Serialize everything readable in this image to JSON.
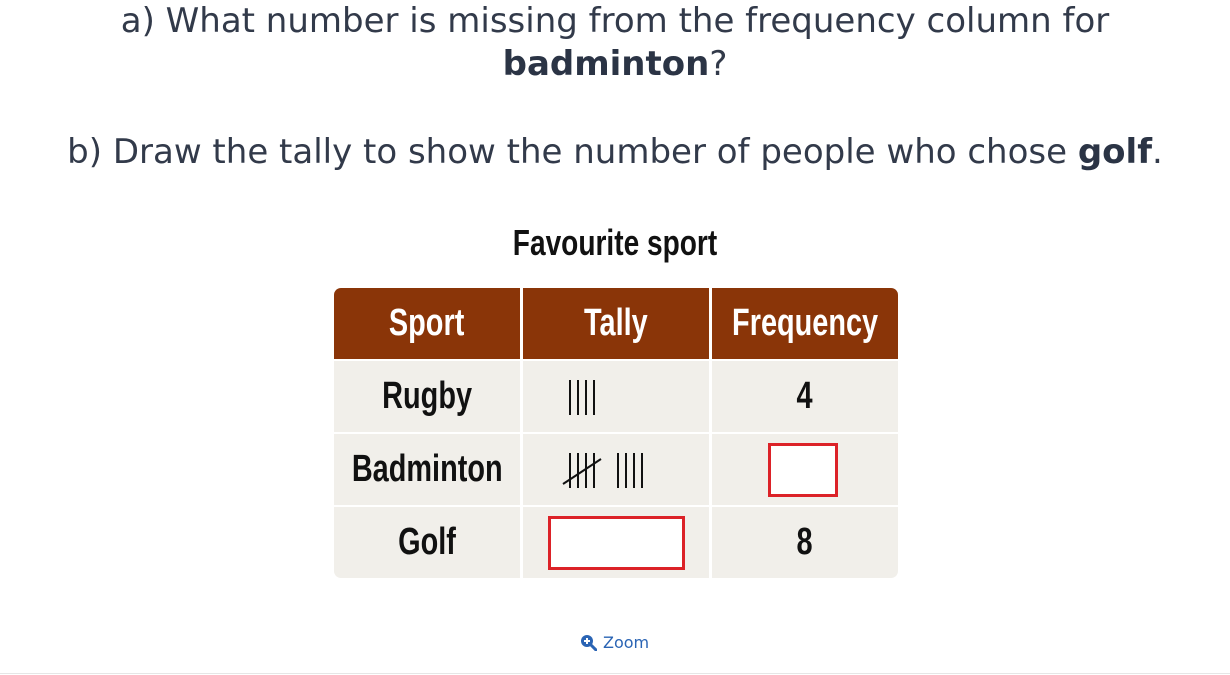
{
  "questions": {
    "a_prefix": "a) What number is missing from the frequency column for",
    "a_bold": "badminton",
    "a_suffix": "?",
    "b_prefix": "b) Draw the tally to show the number of people who chose ",
    "b_bold": "golf",
    "b_suffix": "."
  },
  "table": {
    "title": "Favourite sport",
    "headers": [
      "Sport",
      "Tally",
      "Frequency"
    ],
    "rows": [
      {
        "sport": "Rugby",
        "tally": 4,
        "frequency": "4"
      },
      {
        "sport": "Badminton",
        "tally": 9,
        "frequency": ""
      },
      {
        "sport": "Golf",
        "tally": null,
        "frequency": "8"
      }
    ]
  },
  "zoom": {
    "label": "Zoom",
    "icon": "zoom-in-icon"
  },
  "colors": {
    "header": "#8a3508",
    "answer_box": "#dc2228",
    "row_bg": "#f1efea",
    "link": "#2a64b4"
  }
}
